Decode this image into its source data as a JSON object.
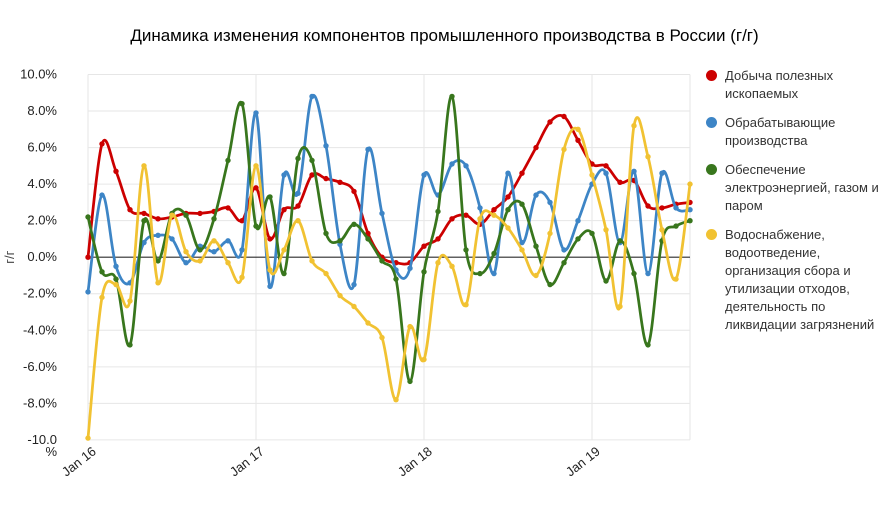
{
  "chart_data": {
    "type": "line",
    "title": "Динамика изменения компонентов промышленного производства в России (г/г)",
    "y_axis": {
      "label": "г/г",
      "min": -10,
      "max": 10,
      "tick_step": 2,
      "tick_suffix": "%"
    },
    "x_axis": {
      "tick_labels": [
        "Jan 16",
        "Jan 17",
        "Jan 18",
        "Jan 19"
      ],
      "tick_month_indexes": [
        0,
        12,
        24,
        36
      ]
    },
    "legend_position": "right",
    "grid": true,
    "smooth": true,
    "point_markers": true,
    "months": [
      "Jan 16",
      "Feb 16",
      "Mar 16",
      "Apr 16",
      "May 16",
      "Jun 16",
      "Jul 16",
      "Aug 16",
      "Sep 16",
      "Oct 16",
      "Nov 16",
      "Dec 16",
      "Jan 17",
      "Feb 17",
      "Mar 17",
      "Apr 17",
      "May 17",
      "Jun 17",
      "Jul 17",
      "Aug 17",
      "Sep 17",
      "Oct 17",
      "Nov 17",
      "Dec 17",
      "Jan 18",
      "Feb 18",
      "Mar 18",
      "Apr 18",
      "May 18",
      "Jun 18",
      "Jul 18",
      "Aug 18",
      "Sep 18",
      "Oct 18",
      "Nov 18",
      "Dec 18",
      "Jan 19",
      "Feb 19",
      "Mar 19",
      "Apr 19",
      "May 19",
      "Jun 19",
      "Jul 19",
      "Aug 19"
    ],
    "series": [
      {
        "name": "Добыча полезных ископаемых",
        "color": "#cc0000",
        "values": [
          0.0,
          6.2,
          4.7,
          2.6,
          2.4,
          2.1,
          2.2,
          2.4,
          2.4,
          2.5,
          2.7,
          2.0,
          3.8,
          1.0,
          2.6,
          2.8,
          4.5,
          4.3,
          4.1,
          3.6,
          1.3,
          0.0,
          -0.3,
          -0.3,
          0.6,
          1.0,
          2.1,
          2.3,
          1.8,
          2.6,
          3.3,
          4.6,
          6.0,
          7.4,
          7.7,
          6.4,
          5.1,
          5.0,
          4.1,
          4.2,
          2.8,
          2.7,
          2.9,
          3.0
        ]
      },
      {
        "name": "Обрабатывающие производства",
        "color": "#3d85c6",
        "values": [
          -1.9,
          3.4,
          -0.5,
          -1.4,
          0.8,
          1.2,
          1.0,
          -0.3,
          0.6,
          0.3,
          0.9,
          0.4,
          7.9,
          -1.6,
          4.5,
          3.5,
          8.8,
          6.1,
          0.7,
          -1.5,
          5.9,
          2.4,
          -0.7,
          -0.6,
          4.5,
          3.4,
          5.1,
          5.0,
          2.7,
          -0.9,
          4.6,
          0.8,
          3.4,
          3.0,
          0.4,
          2.0,
          4.0,
          4.6,
          0.8,
          4.7,
          -0.9,
          4.6,
          2.7,
          2.6
        ]
      },
      {
        "name": "Обеспечение электроэнергией, газом и паром",
        "color": "#38761d",
        "values": [
          2.2,
          -0.8,
          -1.2,
          -4.8,
          2.0,
          -0.2,
          2.4,
          2.3,
          0.4,
          2.1,
          5.3,
          8.4,
          1.7,
          3.3,
          -0.9,
          5.4,
          5.3,
          1.3,
          0.9,
          1.8,
          1.0,
          -0.2,
          -1.2,
          -6.8,
          -0.8,
          2.5,
          8.8,
          0.4,
          -0.9,
          0.2,
          2.6,
          2.9,
          0.6,
          -1.5,
          -0.3,
          1.0,
          1.3,
          -1.3,
          0.9,
          -0.9,
          -4.8,
          0.9,
          1.7,
          2.0
        ]
      },
      {
        "name": "Водоснабжение, водоотведение, организация сбора и утилизации отходов, деятельность по ликвидации загрязнений",
        "color": "#f1c232",
        "values": [
          -9.9,
          -2.2,
          -1.5,
          -2.4,
          5.0,
          -1.4,
          2.3,
          0.3,
          -0.2,
          0.9,
          -0.3,
          -1.1,
          5.0,
          -0.7,
          0.4,
          2.0,
          -0.2,
          -0.9,
          -2.1,
          -2.7,
          -3.6,
          -4.4,
          -7.8,
          -3.8,
          -5.6,
          -0.3,
          -0.5,
          -2.6,
          2.1,
          2.3,
          1.6,
          0.4,
          -1.0,
          1.3,
          5.9,
          7.0,
          4.5,
          1.5,
          -2.7,
          7.2,
          5.5,
          1.5,
          -1.2,
          4.0
        ]
      }
    ]
  }
}
